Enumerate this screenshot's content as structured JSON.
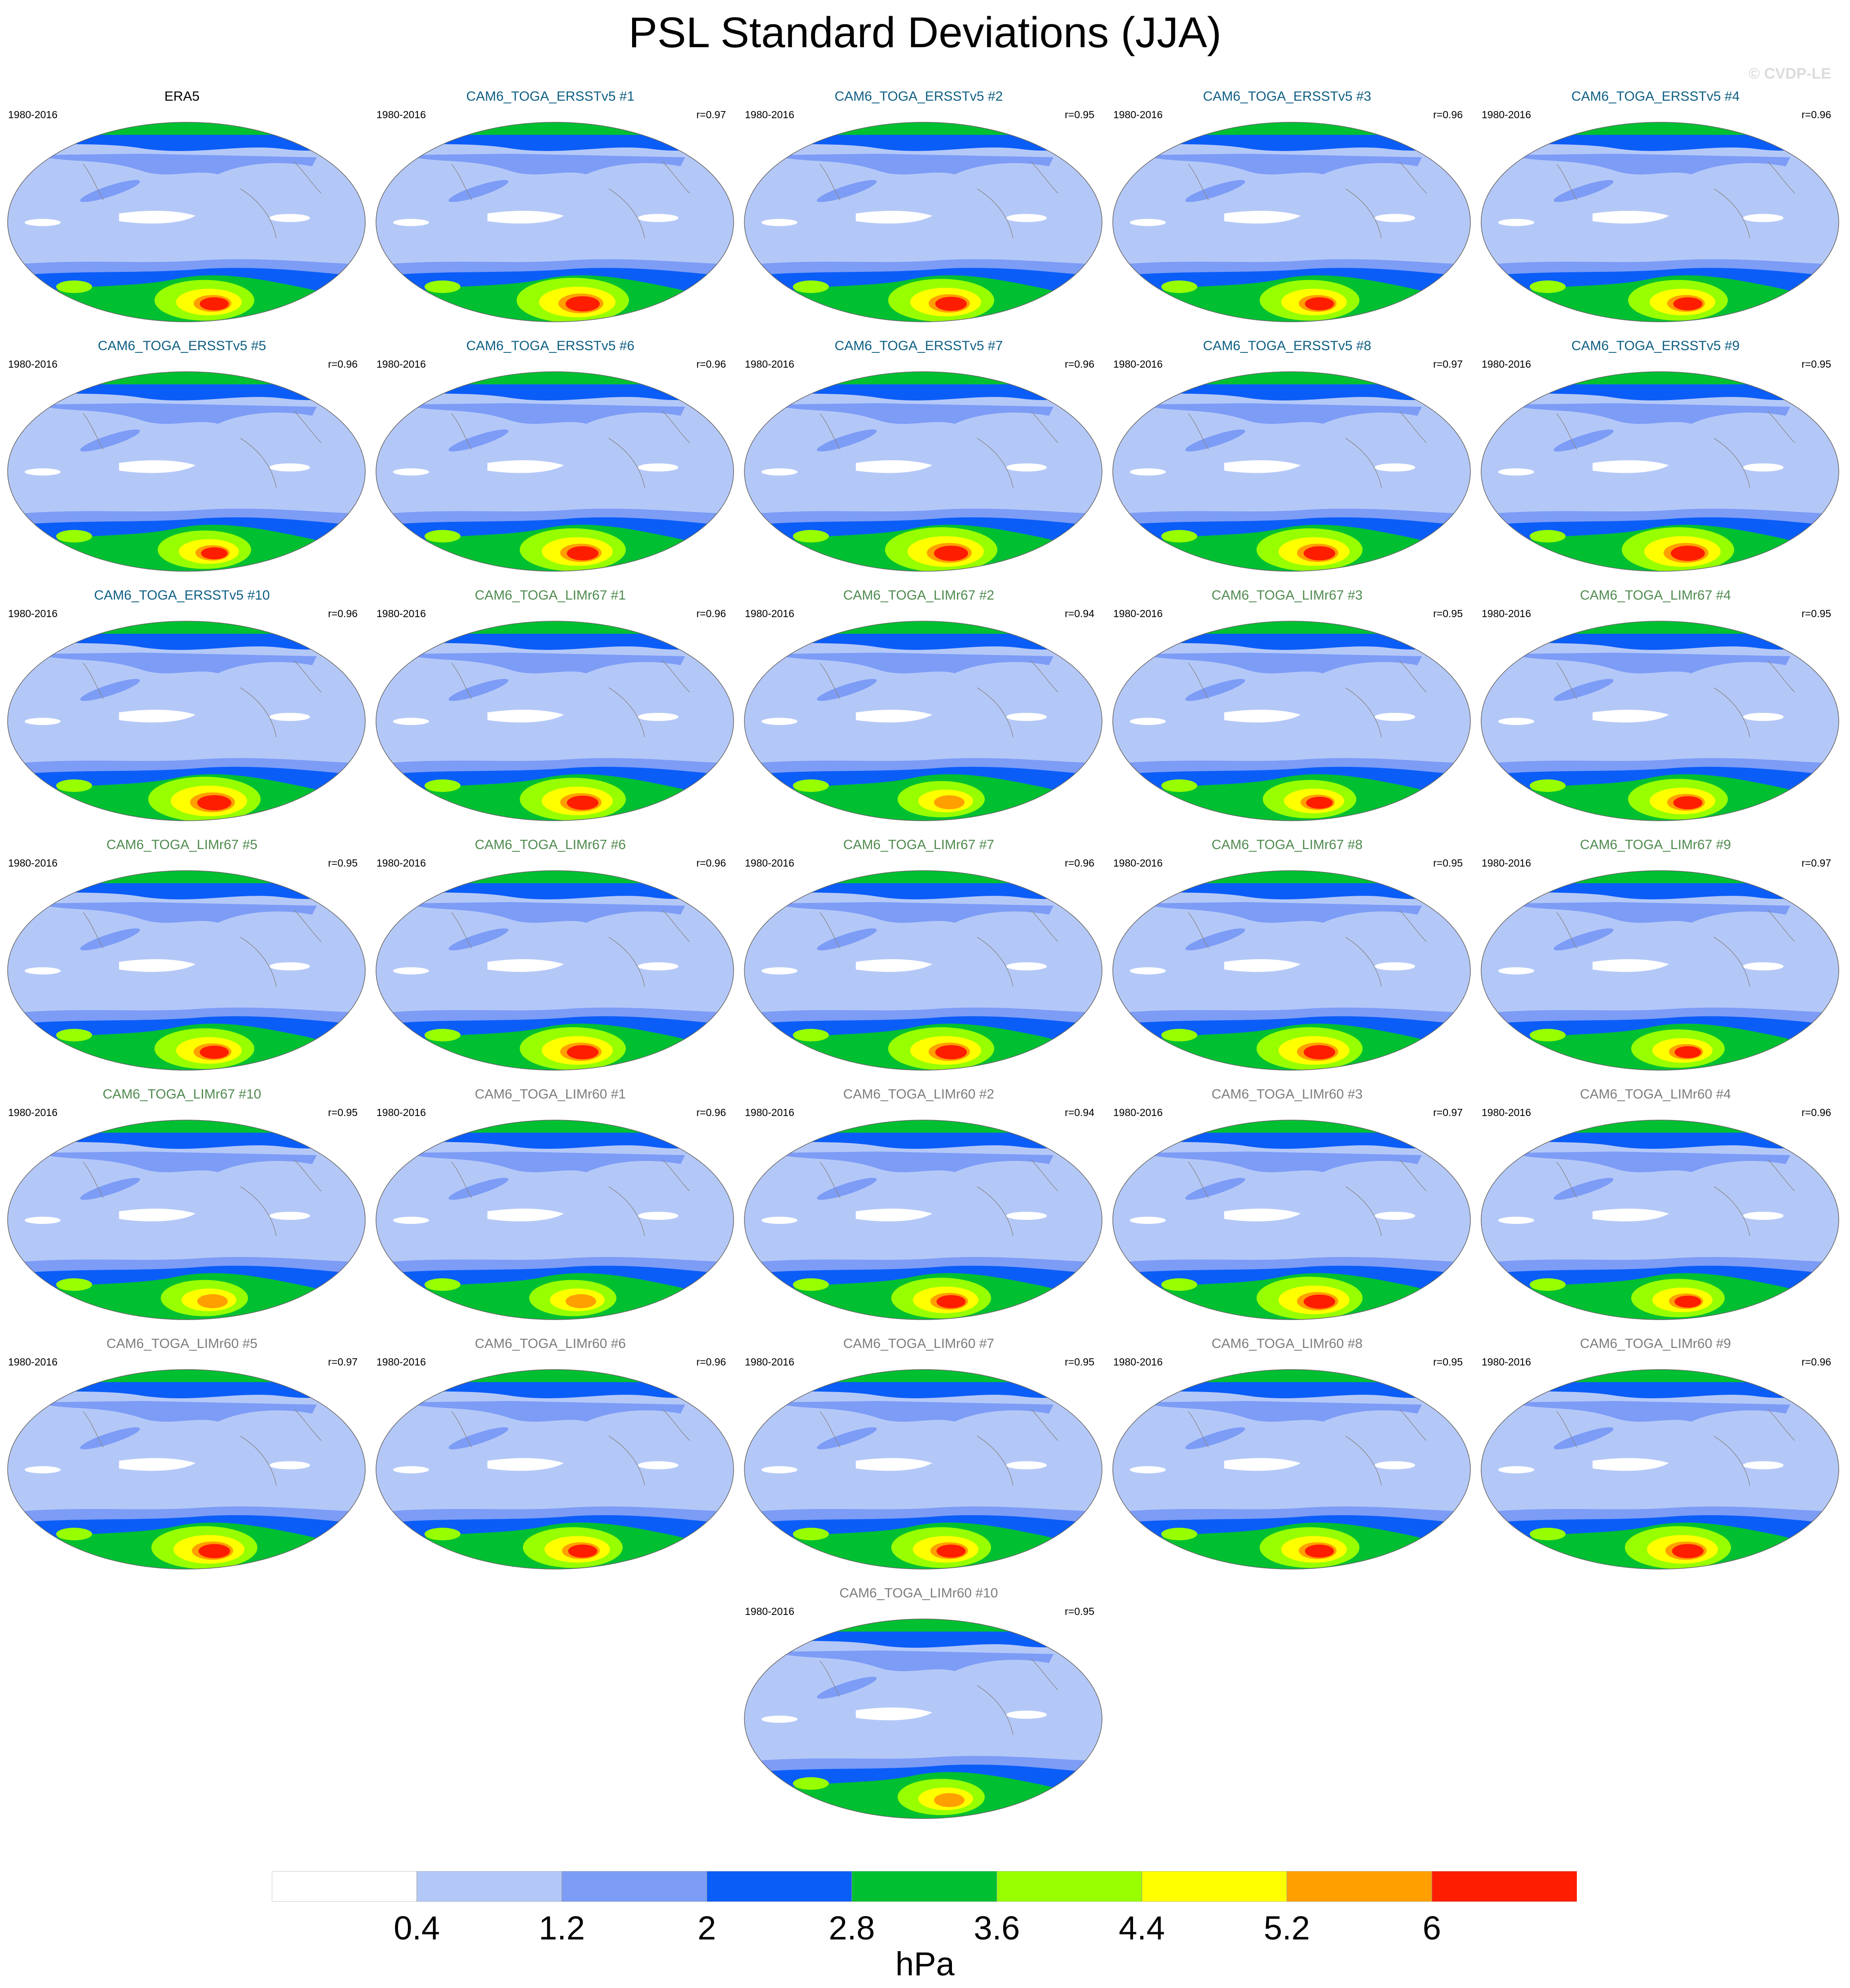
{
  "title": "PSL Standard Deviations (JJA)",
  "watermark": "© CVDP-LE",
  "group_colors": {
    "ERA5": "#000000",
    "ERSSTv5": "#0f5f83",
    "LIMr67": "#4f8a4f",
    "LIMr60": "#7d7d7d"
  },
  "panels": [
    {
      "title": "ERA5",
      "period": "1980-2016",
      "r": "",
      "group": "ERA5",
      "intensity": 0.8
    },
    {
      "title": "CAM6_TOGA_ERSSTv5 #1",
      "period": "1980-2016",
      "r": "r=0.97",
      "group": "ERSSTv5",
      "intensity": 1.0
    },
    {
      "title": "CAM6_TOGA_ERSSTv5 #2",
      "period": "1980-2016",
      "r": "r=0.95",
      "group": "ERSSTv5",
      "intensity": 0.9
    },
    {
      "title": "CAM6_TOGA_ERSSTv5 #3",
      "period": "1980-2016",
      "r": "r=0.96",
      "group": "ERSSTv5",
      "intensity": 0.8
    },
    {
      "title": "CAM6_TOGA_ERSSTv5 #4",
      "period": "1980-2016",
      "r": "r=0.96",
      "group": "ERSSTv5",
      "intensity": 0.8
    },
    {
      "title": "CAM6_TOGA_ERSSTv5 #5",
      "period": "1980-2016",
      "r": "r=0.96",
      "group": "ERSSTv5",
      "intensity": 0.7
    },
    {
      "title": "CAM6_TOGA_ERSSTv5 #6",
      "period": "1980-2016",
      "r": "r=0.96",
      "group": "ERSSTv5",
      "intensity": 0.9
    },
    {
      "title": "CAM6_TOGA_ERSSTv5 #7",
      "period": "1980-2016",
      "r": "r=0.96",
      "group": "ERSSTv5",
      "intensity": 1.0
    },
    {
      "title": "CAM6_TOGA_ERSSTv5 #8",
      "period": "1980-2016",
      "r": "r=0.97",
      "group": "ERSSTv5",
      "intensity": 0.9
    },
    {
      "title": "CAM6_TOGA_ERSSTv5 #9",
      "period": "1980-2016",
      "r": "r=0.95",
      "group": "ERSSTv5",
      "intensity": 1.0
    },
    {
      "title": "CAM6_TOGA_ERSSTv5 #10",
      "period": "1980-2016",
      "r": "r=0.96",
      "group": "ERSSTv5",
      "intensity": 1.0
    },
    {
      "title": "CAM6_TOGA_LIMr67 #1",
      "period": "1980-2016",
      "r": "r=0.96",
      "group": "LIMr67",
      "intensity": 0.9
    },
    {
      "title": "CAM6_TOGA_LIMr67 #2",
      "period": "1980-2016",
      "r": "r=0.94",
      "group": "LIMr67",
      "intensity": 0.6
    },
    {
      "title": "CAM6_TOGA_LIMr67 #3",
      "period": "1980-2016",
      "r": "r=0.95",
      "group": "LIMr67",
      "intensity": 0.7
    },
    {
      "title": "CAM6_TOGA_LIMr67 #4",
      "period": "1980-2016",
      "r": "r=0.95",
      "group": "LIMr67",
      "intensity": 0.8
    },
    {
      "title": "CAM6_TOGA_LIMr67 #5",
      "period": "1980-2016",
      "r": "r=0.95",
      "group": "LIMr67",
      "intensity": 0.8
    },
    {
      "title": "CAM6_TOGA_LIMr67 #6",
      "period": "1980-2016",
      "r": "r=0.96",
      "group": "LIMr67",
      "intensity": 0.9
    },
    {
      "title": "CAM6_TOGA_LIMr67 #7",
      "period": "1980-2016",
      "r": "r=0.96",
      "group": "LIMr67",
      "intensity": 0.9
    },
    {
      "title": "CAM6_TOGA_LIMr67 #8",
      "period": "1980-2016",
      "r": "r=0.95",
      "group": "LIMr67",
      "intensity": 0.9
    },
    {
      "title": "CAM6_TOGA_LIMr67 #9",
      "period": "1980-2016",
      "r": "r=0.97",
      "group": "LIMr67",
      "intensity": 0.7
    },
    {
      "title": "CAM6_TOGA_LIMr67 #10",
      "period": "1980-2016",
      "r": "r=0.95",
      "group": "LIMr67",
      "intensity": 0.6
    },
    {
      "title": "CAM6_TOGA_LIMr60 #1",
      "period": "1980-2016",
      "r": "r=0.96",
      "group": "LIMr60",
      "intensity": 0.6
    },
    {
      "title": "CAM6_TOGA_LIMr60 #2",
      "period": "1980-2016",
      "r": "r=0.94",
      "group": "LIMr60",
      "intensity": 0.8
    },
    {
      "title": "CAM6_TOGA_LIMr60 #3",
      "period": "1980-2016",
      "r": "r=0.97",
      "group": "LIMr60",
      "intensity": 0.9
    },
    {
      "title": "CAM6_TOGA_LIMr60 #4",
      "period": "1980-2016",
      "r": "r=0.96",
      "group": "LIMr60",
      "intensity": 0.7
    },
    {
      "title": "CAM6_TOGA_LIMr60 #5",
      "period": "1980-2016",
      "r": "r=0.97",
      "group": "LIMr60",
      "intensity": 0.9
    },
    {
      "title": "CAM6_TOGA_LIMr60 #6",
      "period": "1980-2016",
      "r": "r=0.96",
      "group": "LIMr60",
      "intensity": 0.8
    },
    {
      "title": "CAM6_TOGA_LIMr60 #7",
      "period": "1980-2016",
      "r": "r=0.95",
      "group": "LIMr60",
      "intensity": 0.8
    },
    {
      "title": "CAM6_TOGA_LIMr60 #8",
      "period": "1980-2016",
      "r": "r=0.95",
      "group": "LIMr60",
      "intensity": 0.8
    },
    {
      "title": "CAM6_TOGA_LIMr60 #9",
      "period": "1980-2016",
      "r": "r=0.96",
      "group": "LIMr60",
      "intensity": 0.9
    },
    {
      "title": "CAM6_TOGA_LIMr60 #10",
      "period": "1980-2016",
      "r": "r=0.95",
      "group": "LIMr60",
      "intensity": 0.6
    }
  ],
  "colorbar": {
    "colors": [
      "#ffffff",
      "#b4c8f8",
      "#7c9cf6",
      "#0b5df8",
      "#00c031",
      "#98ff00",
      "#ffff00",
      "#ffa000",
      "#ff1d00"
    ],
    "levels": [
      "0.4",
      "1.2",
      "2",
      "2.8",
      "3.6",
      "4.4",
      "5.2",
      "6"
    ],
    "units": "hPa"
  }
}
